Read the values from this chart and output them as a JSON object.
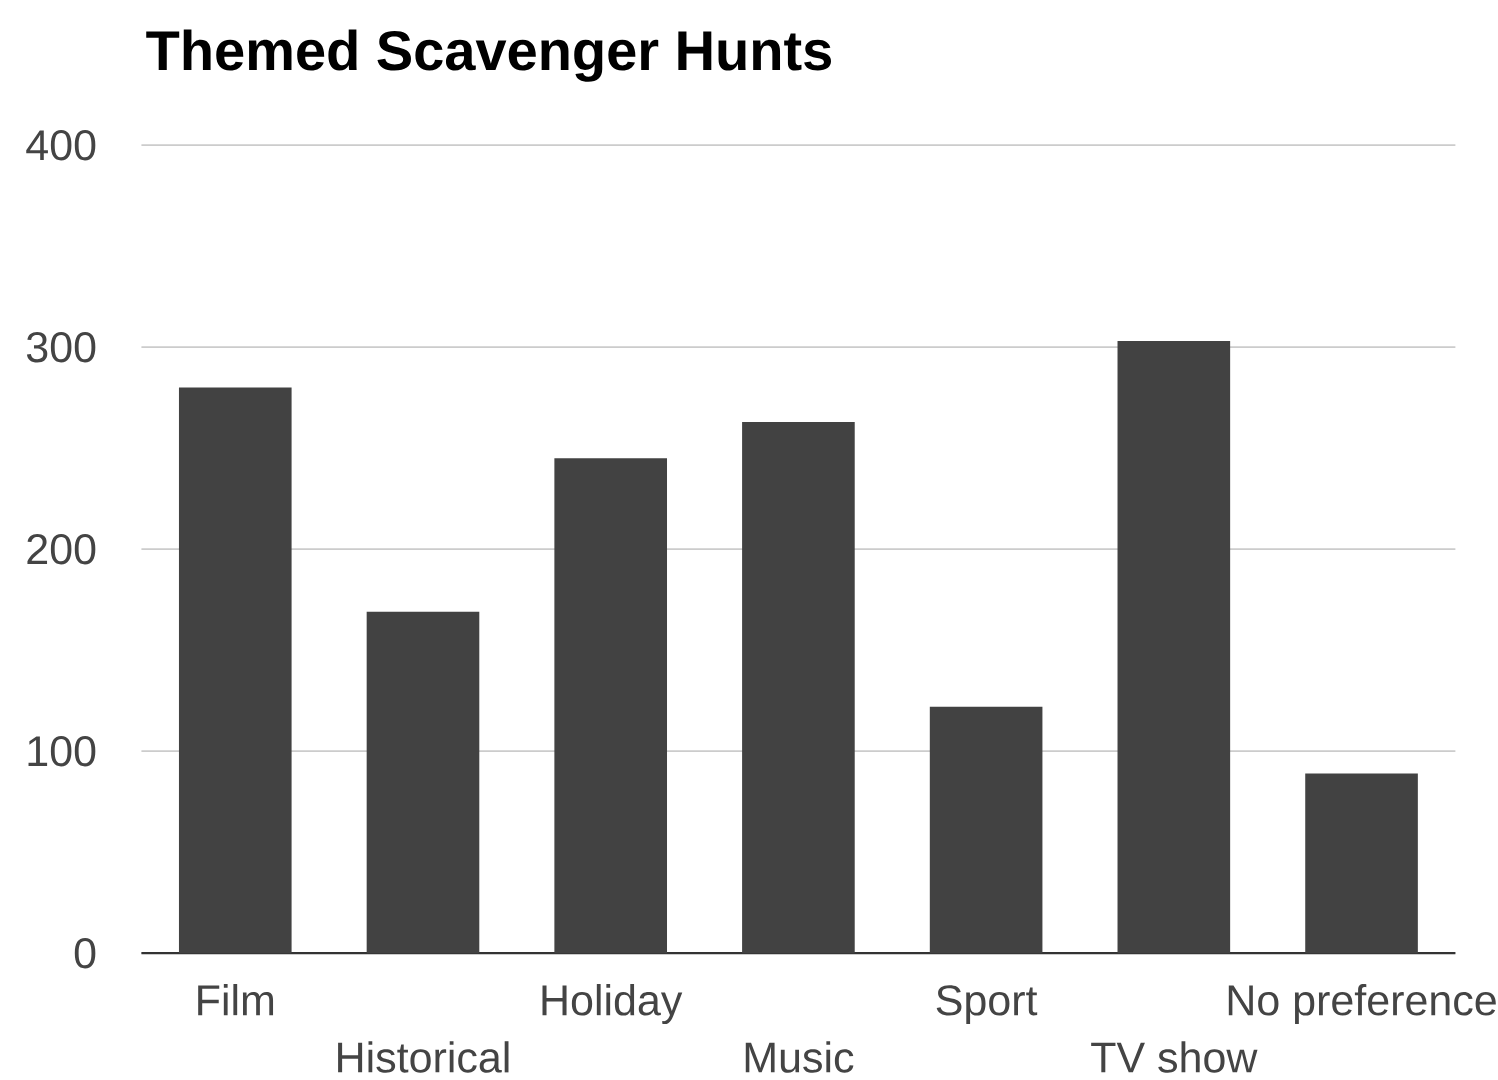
{
  "chart_data": {
    "type": "bar",
    "title": "Themed Scavenger Hunts",
    "categories": [
      "Film",
      "Historical",
      "Holiday",
      "Music",
      "Sport",
      "TV show",
      "No preference"
    ],
    "values": [
      280,
      169,
      245,
      263,
      122,
      303,
      89
    ],
    "color": "#424242",
    "ylim": [
      0,
      400
    ],
    "yticks": [
      0,
      100,
      200,
      300,
      400
    ],
    "grid": "y"
  }
}
